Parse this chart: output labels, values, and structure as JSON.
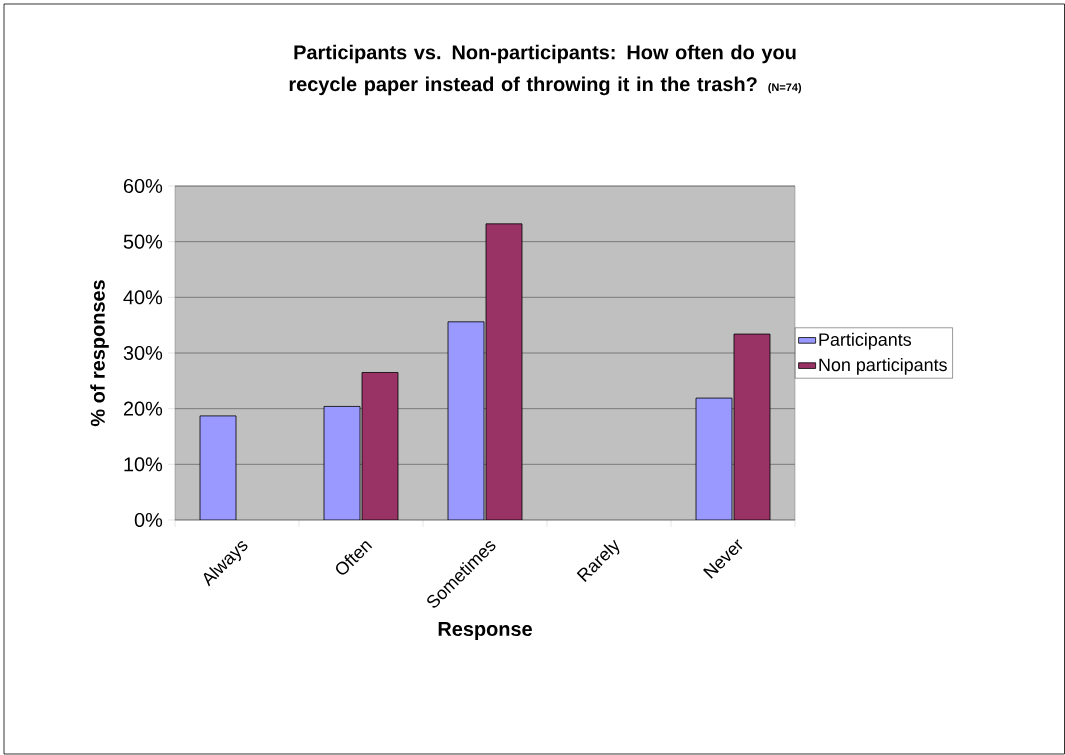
{
  "chart_data": {
    "type": "bar",
    "title": "Participants vs. Non-participants:  How often do you recycle paper instead of throwing it in the trash?",
    "subtitle": "(N=74)",
    "xlabel": "Response",
    "ylabel": "% of responses",
    "categories": [
      "Always",
      "Often",
      "Sometimes",
      "Rarely",
      "Never"
    ],
    "series": [
      {
        "name": "Participants",
        "color": "#9999ff",
        "values": [
          18.7,
          20.4,
          35.6,
          null,
          21.9
        ]
      },
      {
        "name": "Non participants",
        "color": "#993366",
        "values": [
          null,
          26.5,
          53.2,
          null,
          33.4
        ]
      }
    ],
    "ylim": [
      0,
      60
    ],
    "yticks": [
      {
        "value": 0,
        "label": "0%"
      },
      {
        "value": 10,
        "label": "10%"
      },
      {
        "value": 20,
        "label": "20%"
      },
      {
        "value": 30,
        "label": "30%"
      },
      {
        "value": 40,
        "label": "40%"
      },
      {
        "value": 50,
        "label": "50%"
      },
      {
        "value": 60,
        "label": "60%"
      }
    ],
    "grid": "y",
    "legend": "right"
  }
}
